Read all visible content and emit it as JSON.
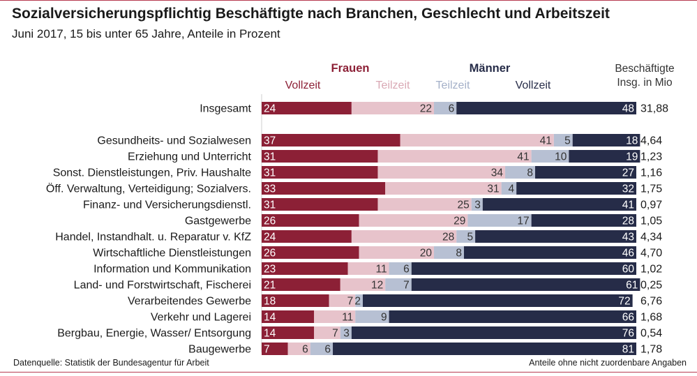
{
  "header": {
    "title": "Sozialversicherungspflichtig Beschäftigte nach Branchen, Geschlecht und Arbeitszeit",
    "subtitle": "Juni 2017, 15 bis unter 65 Jahre, Anteile in Prozent"
  },
  "footer": {
    "source": "Datenquelle:  Statistik der Bundesagentur für Arbeit",
    "note": "Anteile ohne nicht zuordenbare Angaben"
  },
  "colors": {
    "rule": "#b73a4f",
    "frauen_vollzeit": "#8c2036",
    "frauen_teilzeit": "#e7c3cb",
    "maenner_teilzeit": "#b7c0d3",
    "maenner_vollzeit": "#262c48"
  },
  "chart_data": {
    "type": "bar",
    "orientation": "horizontal",
    "stacked": true,
    "unit": "Prozent",
    "xlim": [
      0,
      100
    ],
    "group_labels": {
      "frauen": "Frauen",
      "maenner": "Männer"
    },
    "total_header": "Beschäftigte\nInsg. in Mio",
    "series": [
      {
        "key": "frauen_vollzeit",
        "name": "Vollzeit",
        "group": "Frauen",
        "color": "#8c2036",
        "label_color": "#ffffff"
      },
      {
        "key": "frauen_teilzeit",
        "name": "Teilzeit",
        "group": "Frauen",
        "color": "#e7c3cb",
        "label_color": "#333333"
      },
      {
        "key": "maenner_teilzeit",
        "name": "Teilzeit",
        "group": "Männer",
        "color": "#b7c0d3",
        "label_color": "#333333"
      },
      {
        "key": "maenner_vollzeit",
        "name": "Vollzeit",
        "group": "Männer",
        "color": "#262c48",
        "label_color": "#ffffff"
      }
    ],
    "rows": [
      {
        "category": "Insgesamt",
        "values": [
          24,
          22,
          6,
          48
        ],
        "total": "31,88"
      },
      {
        "category": "Gesundheits- und Sozialwesen",
        "values": [
          37,
          41,
          5,
          18
        ],
        "total": "4,64"
      },
      {
        "category": "Erziehung und Unterricht",
        "values": [
          31,
          41,
          10,
          19
        ],
        "total": "1,23"
      },
      {
        "category": "Sonst. Dienstleistungen, Priv. Haushalte",
        "values": [
          31,
          34,
          8,
          27
        ],
        "total": "1,16"
      },
      {
        "category": "Öff. Verwaltung, Verteidigung; Sozialvers.",
        "values": [
          33,
          31,
          4,
          32
        ],
        "total": "1,75"
      },
      {
        "category": "Finanz- und Versicherungsdienstl.",
        "values": [
          31,
          25,
          3,
          41
        ],
        "total": "0,97"
      },
      {
        "category": "Gastgewerbe",
        "values": [
          26,
          29,
          17,
          28
        ],
        "total": "1,05"
      },
      {
        "category": "Handel, Instandhalt. u. Reparatur v. KfZ",
        "values": [
          24,
          28,
          5,
          43
        ],
        "total": "4,34"
      },
      {
        "category": "Wirtschaftliche Dienstleistungen",
        "values": [
          26,
          20,
          8,
          46
        ],
        "total": "4,70"
      },
      {
        "category": "Information und Kommunikation",
        "values": [
          23,
          11,
          6,
          60
        ],
        "total": "1,02"
      },
      {
        "category": "Land- und Forstwirtschaft, Fischerei",
        "values": [
          21,
          12,
          7,
          61
        ],
        "total": "0,25"
      },
      {
        "category": "Verarbeitendes Gewerbe",
        "values": [
          18,
          7,
          2,
          72
        ],
        "total": "6,76"
      },
      {
        "category": "Verkehr und Lagerei",
        "values": [
          14,
          11,
          9,
          66
        ],
        "total": "1,68"
      },
      {
        "category": "Bergbau, Energie, Wasser/ Entsorgung",
        "values": [
          14,
          7,
          3,
          76
        ],
        "total": "0,54"
      },
      {
        "category": "Baugewerbe",
        "values": [
          7,
          6,
          6,
          81
        ],
        "total": "1,78"
      }
    ]
  }
}
